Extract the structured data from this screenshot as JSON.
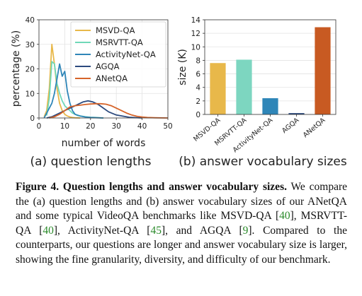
{
  "chart_data": [
    {
      "type": "line",
      "subcaption": "(a) question lengths",
      "xlabel": "number of words",
      "ylabel": "percentage (%)",
      "xlim": [
        0,
        50
      ],
      "ylim": [
        0,
        40
      ],
      "xticks": [
        0,
        10,
        20,
        30,
        40,
        50
      ],
      "yticks": [
        0,
        10,
        20,
        30,
        40
      ],
      "grid": true,
      "legend_position": "upper-right",
      "series": [
        {
          "name": "MSVD-QA",
          "color": "#e8b84a",
          "x": [
            2,
            3,
            4,
            5,
            6,
            7,
            8,
            9,
            10,
            11,
            12,
            13,
            14,
            15,
            16
          ],
          "y": [
            0.5,
            3,
            12,
            30,
            22,
            12,
            6,
            3,
            1.5,
            0.8,
            0.4,
            0.2,
            0.1,
            0.05,
            0
          ]
        },
        {
          "name": "MSRVTT-QA",
          "color": "#6fd8b8",
          "x": [
            3,
            4,
            5,
            6,
            7,
            8,
            9,
            10,
            11,
            12,
            13,
            14,
            15,
            16,
            18,
            20,
            22,
            25
          ],
          "y": [
            1,
            8,
            23,
            22,
            14,
            10,
            7,
            5,
            4,
            3,
            2,
            1.5,
            1,
            0.8,
            0.5,
            0.3,
            0.2,
            0
          ]
        },
        {
          "name": "ActivityNet-QA",
          "color": "#2f86b8",
          "x": [
            2,
            3,
            4,
            5,
            6,
            7,
            8,
            9,
            10,
            11,
            12,
            13,
            14,
            16,
            18,
            20,
            25
          ],
          "y": [
            0,
            2,
            4,
            6,
            10,
            16,
            22,
            17,
            19,
            11,
            6,
            3,
            1.5,
            0.8,
            0.4,
            0.2,
            0
          ]
        },
        {
          "name": "AGQA",
          "color": "#2c4a7e",
          "x": [
            3,
            5,
            7,
            9,
            11,
            13,
            15,
            17,
            19,
            21,
            23,
            25,
            27,
            30,
            35,
            40
          ],
          "y": [
            0,
            0.5,
            1.5,
            2.5,
            3.5,
            4.5,
            5.5,
            6.5,
            7,
            6.5,
            5.5,
            4,
            2.5,
            1.2,
            0.3,
            0
          ]
        },
        {
          "name": "ANetQA",
          "color": "#d6642a",
          "x": [
            4,
            6,
            8,
            10,
            12,
            14,
            16,
            18,
            20,
            22,
            24,
            26,
            28,
            30,
            32,
            34,
            36,
            38,
            40,
            42,
            45,
            50
          ],
          "y": [
            0,
            0.5,
            1.5,
            3,
            4.5,
            5,
            5.2,
            5.5,
            5.7,
            5.8,
            5.8,
            5.6,
            5,
            4,
            3,
            2,
            1.2,
            0.7,
            0.4,
            0.2,
            0.1,
            0
          ]
        }
      ]
    },
    {
      "type": "bar",
      "subcaption": "(b) answer vocabulary sizes",
      "ylabel": "size (K)",
      "ylim": [
        0,
        14
      ],
      "yticks": [
        0,
        2,
        4,
        6,
        8,
        10,
        12,
        14
      ],
      "grid": true,
      "categories": [
        "MSVD-QA",
        "MSRVTT-QA",
        "ActivityNet-QA",
        "AGQA",
        "ANetQA"
      ],
      "values": [
        7.6,
        8.1,
        2.4,
        0.2,
        12.9
      ],
      "colors": [
        "#e8b84a",
        "#7dd6c0",
        "#2f86b8",
        "#2c4a7e",
        "#c85a22"
      ]
    }
  ],
  "caption": {
    "figure_label": "Figure 4.",
    "bold_title": "Question lengths and answer vocabulary sizes.",
    "body_1": " We compare the (a) question lengths and (b) answer vocabulary sizes of our ANetQA and some typical VideoQA benchmarks like MSVD-QA [",
    "ref_1": "40",
    "body_2": "], MSRVTT-QA [",
    "ref_2": "40",
    "body_3": "], ActivityNet-QA [",
    "ref_3": "45",
    "body_4": "], and AGQA [",
    "ref_4": "9",
    "body_5": "]. Compared to the counterparts, our questions are longer and answer vocabulary size is larger, showing the fine granularity, diversity, and difficulty of our benchmark.",
    "ref_color": "#2a8a2a"
  }
}
